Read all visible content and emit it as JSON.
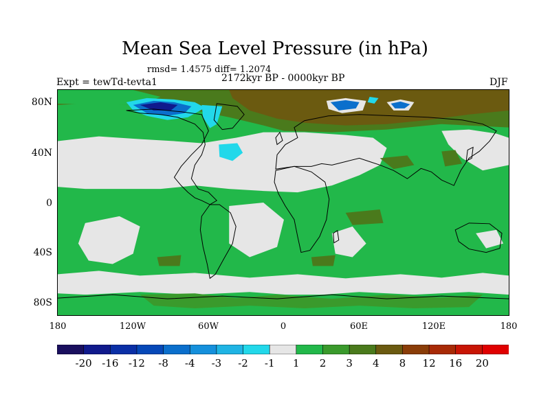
{
  "title": "Mean Sea Level Pressure (in hPa)",
  "stats": "rmsd= 1.4575 diff= 1.2074",
  "period": "2172kyr BP - 0000kyr BP",
  "experiment": "Expt = tewTd-tevta1",
  "season": "DJF",
  "lat_labels": [
    "80N",
    "40N",
    "0",
    "40S",
    "80S"
  ],
  "lon_labels": [
    "180",
    "120W",
    "60W",
    "0",
    "60E",
    "120E",
    "180"
  ],
  "colorbar": {
    "labels": [
      "-20",
      "-16",
      "-12",
      "-8",
      "-4",
      "-3",
      "-2",
      "-1",
      "1",
      "2",
      "3",
      "4",
      "8",
      "12",
      "16",
      "20"
    ],
    "colors": [
      "#1a0f5e",
      "#101a8c",
      "#0a2fa6",
      "#0648b8",
      "#0b6fcc",
      "#1590dc",
      "#1fb4e4",
      "#22d8ea",
      "#e6e6e6",
      "#22b84a",
      "#3a9a2c",
      "#4a7a1c",
      "#6b5a10",
      "#8a3d08",
      "#a82a06",
      "#c81504",
      "#e00000"
    ]
  },
  "colors": {
    "neutral": "#e6e6e6",
    "green": "#22b84a",
    "dark_green": "#3a9a2c",
    "olive": "#4a7a1c",
    "brown": "#6b5a10",
    "cyan": "#22d8ea",
    "blue": "#0b6fcc",
    "navy": "#101a8c"
  }
}
